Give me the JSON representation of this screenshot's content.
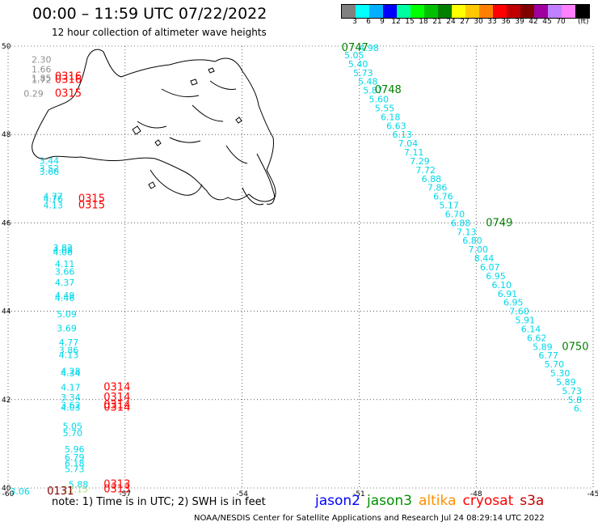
{
  "header": {
    "title": "00:00 – 11:59 UTC 07/22/2022",
    "subtitle": "12 hour collection of altimeter wave heights"
  },
  "colorbar": {
    "unit": "(ft)",
    "colors": [
      "#808080",
      "#00ffff",
      "#00b0ff",
      "#0000ff",
      "#00ffa0",
      "#00ff00",
      "#00c000",
      "#008000",
      "#ffff00",
      "#ffc800",
      "#ff8000",
      "#ff0000",
      "#c00000",
      "#800000",
      "#a000a0",
      "#c080ff",
      "#ff80ff",
      "#000000"
    ],
    "labels": [
      "3",
      "6",
      "9",
      "12",
      "15",
      "18",
      "21",
      "24",
      "27",
      "30",
      "33",
      "36",
      "39",
      "42",
      "45",
      "70"
    ]
  },
  "chart_data": {
    "type": "scatter",
    "x_ticks": [
      "-60",
      "-57",
      "-54",
      "-51",
      "-48",
      "-45"
    ],
    "y_ticks": [
      "50",
      "48",
      "46",
      "44",
      "42",
      "40"
    ],
    "xlim": [
      -60,
      -45
    ],
    "ylim": [
      40,
      50
    ],
    "grid": true,
    "labels": [
      {
        "lon": -59.4,
        "lat": 49.7,
        "text": "2.30",
        "color": "#909090"
      },
      {
        "lon": -59.4,
        "lat": 49.48,
        "text": "1.66",
        "color": "#909090"
      },
      {
        "lon": -59.4,
        "lat": 49.28,
        "text": "1.85",
        "color": "#909090"
      },
      {
        "lon": -59.4,
        "lat": 49.24,
        "text": "1.72",
        "color": "#909090"
      },
      {
        "lon": -59.6,
        "lat": 48.93,
        "text": "0.29",
        "color": "#909090"
      },
      {
        "lon": -58.8,
        "lat": 49.31,
        "text": "0316",
        "color": "#ff0000"
      },
      {
        "lon": -58.8,
        "lat": 49.24,
        "text": "0316",
        "color": "#ff0000"
      },
      {
        "lon": -58.8,
        "lat": 48.93,
        "text": "0315",
        "color": "#ff0000"
      },
      {
        "lon": -59.2,
        "lat": 47.41,
        "text": "3.44",
        "color": "#00d8e8"
      },
      {
        "lon": -59.2,
        "lat": 47.23,
        "text": "3.52",
        "color": "#00d8e8"
      },
      {
        "lon": -59.2,
        "lat": 47.16,
        "text": "3.68",
        "color": "#00d8e8"
      },
      {
        "lon": -59.1,
        "lat": 46.6,
        "text": "4.77",
        "color": "#00d8e8"
      },
      {
        "lon": -59.1,
        "lat": 46.55,
        "text": "4.76",
        "color": "#00d8e8"
      },
      {
        "lon": -59.1,
        "lat": 46.4,
        "text": "4.13",
        "color": "#00d8e8"
      },
      {
        "lon": -58.2,
        "lat": 46.55,
        "text": "0315",
        "color": "#ff0000"
      },
      {
        "lon": -58.2,
        "lat": 46.4,
        "text": "0315",
        "color": "#ff0000"
      },
      {
        "lon": -58.85,
        "lat": 45.44,
        "text": "3.82",
        "color": "#00d8e8"
      },
      {
        "lon": -58.85,
        "lat": 45.39,
        "text": "4.08",
        "color": "#00d8e8"
      },
      {
        "lon": -58.85,
        "lat": 45.34,
        "text": "4.06",
        "color": "#00d8e8"
      },
      {
        "lon": -58.8,
        "lat": 45.07,
        "text": "4.11",
        "color": "#00d8e8"
      },
      {
        "lon": -58.8,
        "lat": 44.9,
        "text": "3.66",
        "color": "#00d8e8"
      },
      {
        "lon": -58.8,
        "lat": 44.65,
        "text": "4.37",
        "color": "#00d8e8"
      },
      {
        "lon": -58.8,
        "lat": 44.36,
        "text": "4.49",
        "color": "#00d8e8"
      },
      {
        "lon": -58.8,
        "lat": 44.3,
        "text": "4.46",
        "color": "#00d8e8"
      },
      {
        "lon": -58.75,
        "lat": 43.94,
        "text": "5.09",
        "color": "#00d8e8"
      },
      {
        "lon": -58.75,
        "lat": 43.62,
        "text": "3.69",
        "color": "#00d8e8"
      },
      {
        "lon": -58.7,
        "lat": 43.3,
        "text": "4.77",
        "color": "#00d8e8"
      },
      {
        "lon": -58.7,
        "lat": 43.12,
        "text": "3.86",
        "color": "#00d8e8"
      },
      {
        "lon": -58.7,
        "lat": 43.01,
        "text": "4.13",
        "color": "#00d8e8"
      },
      {
        "lon": -58.65,
        "lat": 42.65,
        "text": "4.28",
        "color": "#00d8e8"
      },
      {
        "lon": -58.65,
        "lat": 42.6,
        "text": "4.34",
        "color": "#00d8e8"
      },
      {
        "lon": -58.65,
        "lat": 42.28,
        "text": "4.17",
        "color": "#00d8e8"
      },
      {
        "lon": -58.65,
        "lat": 42.05,
        "text": "3.34",
        "color": "#00d8e8"
      },
      {
        "lon": -58.65,
        "lat": 41.88,
        "text": "3.62",
        "color": "#00d8e8"
      },
      {
        "lon": -58.65,
        "lat": 41.82,
        "text": "4.03",
        "color": "#00d8e8"
      },
      {
        "lon": -57.55,
        "lat": 42.28,
        "text": "0314",
        "color": "#ff0000"
      },
      {
        "lon": -57.55,
        "lat": 42.05,
        "text": "0314",
        "color": "#ff0000"
      },
      {
        "lon": -57.55,
        "lat": 41.88,
        "text": "0314",
        "color": "#ff0000"
      },
      {
        "lon": -57.55,
        "lat": 41.82,
        "text": "0314",
        "color": "#ff0000"
      },
      {
        "lon": -58.6,
        "lat": 41.4,
        "text": "5.05",
        "color": "#00d8e8"
      },
      {
        "lon": -58.6,
        "lat": 41.25,
        "text": "5.70",
        "color": "#00d8e8"
      },
      {
        "lon": -58.55,
        "lat": 40.88,
        "text": "5.96",
        "color": "#00d8e8"
      },
      {
        "lon": -58.55,
        "lat": 40.7,
        "text": "6.79",
        "color": "#00d8e8"
      },
      {
        "lon": -58.55,
        "lat": 40.56,
        "text": "6.18",
        "color": "#00d8e8"
      },
      {
        "lon": -58.55,
        "lat": 40.43,
        "text": "5.73",
        "color": "#00d8e8"
      },
      {
        "lon": -58.45,
        "lat": 40.08,
        "text": "5.88",
        "color": "#00d8e8"
      },
      {
        "lon": -58.6,
        "lat": 39.97,
        "text": "12.15",
        "color": "#a8e080"
      },
      {
        "lon": -57.55,
        "lat": 40.08,
        "text": "0313",
        "color": "#ff0000"
      },
      {
        "lon": -57.55,
        "lat": 39.97,
        "text": "0313",
        "color": "#ff0000"
      },
      {
        "lon": -59.95,
        "lat": 39.93,
        "text": "3.06",
        "color": "#00d8e8"
      },
      {
        "lon": -59.0,
        "lat": 39.93,
        "text": "0131",
        "color": "#800000"
      },
      {
        "lon": -51.0,
        "lat": 49.96,
        "text": "4.98",
        "color": "#00d8e8"
      },
      {
        "lon": -51.45,
        "lat": 49.96,
        "text": "0747",
        "color": "#008000"
      },
      {
        "lon": -51.38,
        "lat": 49.8,
        "text": "5.05",
        "color": "#00d8e8"
      },
      {
        "lon": -51.28,
        "lat": 49.6,
        "text": "5.40",
        "color": "#00d8e8"
      },
      {
        "lon": -51.15,
        "lat": 49.4,
        "text": "5.73",
        "color": "#00d8e8"
      },
      {
        "lon": -51.03,
        "lat": 49.2,
        "text": "5.48",
        "color": "#00d8e8"
      },
      {
        "lon": -50.9,
        "lat": 49.0,
        "text": "5.87",
        "color": "#00d8e8"
      },
      {
        "lon": -50.6,
        "lat": 49.01,
        "text": "0748",
        "color": "#008000"
      },
      {
        "lon": -50.75,
        "lat": 48.8,
        "text": "5.60",
        "color": "#00d8e8"
      },
      {
        "lon": -50.6,
        "lat": 48.6,
        "text": "5.55",
        "color": "#00d8e8"
      },
      {
        "lon": -50.45,
        "lat": 48.4,
        "text": "6.18",
        "color": "#00d8e8"
      },
      {
        "lon": -50.3,
        "lat": 48.2,
        "text": "6.63",
        "color": "#00d8e8"
      },
      {
        "lon": -50.15,
        "lat": 48.0,
        "text": "6.13",
        "color": "#00d8e8"
      },
      {
        "lon": -50.0,
        "lat": 47.8,
        "text": "7.04",
        "color": "#00d8e8"
      },
      {
        "lon": -49.85,
        "lat": 47.6,
        "text": "7.11",
        "color": "#00d8e8"
      },
      {
        "lon": -49.7,
        "lat": 47.4,
        "text": "7.29",
        "color": "#00d8e8"
      },
      {
        "lon": -49.55,
        "lat": 47.2,
        "text": "7.72",
        "color": "#00d8e8"
      },
      {
        "lon": -49.4,
        "lat": 47.0,
        "text": "6.88",
        "color": "#00d8e8"
      },
      {
        "lon": -49.25,
        "lat": 46.8,
        "text": "7.86",
        "color": "#00d8e8"
      },
      {
        "lon": -49.1,
        "lat": 46.6,
        "text": "6.76",
        "color": "#00d8e8"
      },
      {
        "lon": -48.95,
        "lat": 46.4,
        "text": "5.17",
        "color": "#00d8e8"
      },
      {
        "lon": -48.8,
        "lat": 46.2,
        "text": "6.70",
        "color": "#00d8e8"
      },
      {
        "lon": -48.65,
        "lat": 46.0,
        "text": "6.88",
        "color": "#00d8e8"
      },
      {
        "lon": -47.75,
        "lat": 46.0,
        "text": "0749",
        "color": "#008000"
      },
      {
        "lon": -48.5,
        "lat": 45.8,
        "text": "7.13",
        "color": "#00d8e8"
      },
      {
        "lon": -48.35,
        "lat": 45.6,
        "text": "6.80",
        "color": "#00d8e8"
      },
      {
        "lon": -48.2,
        "lat": 45.4,
        "text": "7.00",
        "color": "#00d8e8"
      },
      {
        "lon": -48.05,
        "lat": 45.2,
        "text": "8.44",
        "color": "#00d8e8"
      },
      {
        "lon": -47.9,
        "lat": 45.0,
        "text": "6.07",
        "color": "#00d8e8"
      },
      {
        "lon": -47.75,
        "lat": 44.8,
        "text": "6.95",
        "color": "#00d8e8"
      },
      {
        "lon": -47.6,
        "lat": 44.6,
        "text": "6.10",
        "color": "#00d8e8"
      },
      {
        "lon": -47.45,
        "lat": 44.4,
        "text": "6.91",
        "color": "#00d8e8"
      },
      {
        "lon": -47.3,
        "lat": 44.2,
        "text": "6.95",
        "color": "#00d8e8"
      },
      {
        "lon": -47.15,
        "lat": 44.0,
        "text": "7.60",
        "color": "#00d8e8"
      },
      {
        "lon": -47.0,
        "lat": 43.8,
        "text": "5.91",
        "color": "#00d8e8"
      },
      {
        "lon": -46.85,
        "lat": 43.6,
        "text": "6.14",
        "color": "#00d8e8"
      },
      {
        "lon": -46.7,
        "lat": 43.4,
        "text": "6.62",
        "color": "#00d8e8"
      },
      {
        "lon": -46.55,
        "lat": 43.2,
        "text": "5.89",
        "color": "#00d8e8"
      },
      {
        "lon": -45.8,
        "lat": 43.2,
        "text": "0750",
        "color": "#008000"
      },
      {
        "lon": -46.4,
        "lat": 43.0,
        "text": "6.77",
        "color": "#00d8e8"
      },
      {
        "lon": -46.25,
        "lat": 42.8,
        "text": "5.70",
        "color": "#00d8e8"
      },
      {
        "lon": -46.1,
        "lat": 42.6,
        "text": "5.30",
        "color": "#00d8e8"
      },
      {
        "lon": -45.95,
        "lat": 42.4,
        "text": "5.89",
        "color": "#00d8e8"
      },
      {
        "lon": -45.8,
        "lat": 42.2,
        "text": "5.73",
        "color": "#00d8e8"
      },
      {
        "lon": -45.65,
        "lat": 42.0,
        "text": "5.8",
        "color": "#00d8e8"
      },
      {
        "lon": -45.5,
        "lat": 41.8,
        "text": "6.",
        "color": "#00d8e8"
      }
    ]
  },
  "note": "note: 1) Time is in UTC; 2) SWH is in feet",
  "legend": [
    {
      "name": "jason2",
      "color": "#0000ff"
    },
    {
      "name": "jason3",
      "color": "#009000"
    },
    {
      "name": "altika",
      "color": "#ff9000"
    },
    {
      "name": "cryosat",
      "color": "#ff0000"
    },
    {
      "name": "s3a",
      "color": "#c00000"
    }
  ],
  "footer": "NOAA/NESDIS Center for Satellite Applications and Research   Jul 24 08:29:14 UTC 2022"
}
